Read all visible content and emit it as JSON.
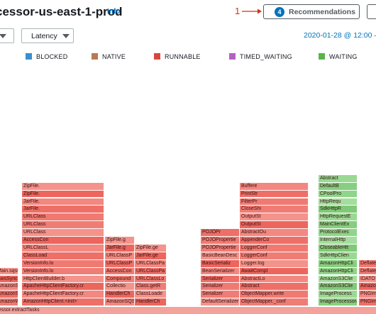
{
  "header": {
    "title": "cessor-us-east-1-prod",
    "info_label": "Info",
    "step_number": "1",
    "recommendations_count": "4",
    "recommendations_label": "Recommendations"
  },
  "toolbar": {
    "metric_value": "Latency",
    "time_range": "2020-01-28 @ 12:00 –"
  },
  "legend": [
    {
      "label": "BLOCKED",
      "color": "#3a8fcf"
    },
    {
      "label": "NATIVE",
      "color": "#b87a52"
    },
    {
      "label": "RUNNABLE",
      "color": "#d9473c"
    },
    {
      "label": "TIMED_WAITING",
      "color": "#b560c4"
    },
    {
      "label": "WAITING",
      "color": "#57b548"
    }
  ],
  "flame_columns": [
    {
      "state": "RUNNABLE",
      "frames": [
        "AmazonWebServiceClient.<init>",
        "AmazonSQSClient.<init>",
        "AmazonSQSClientBuilder.build",
        "AwsSyncClientBuilder.build",
        "Main.sqsClient"
      ]
    },
    {
      "state": "RUNNABLE",
      "frames": [
        "AmazonHttpClient.<init>",
        "ApacheHttpClientFactory.cr",
        "ApacheHttpClientFactory.cr",
        "HttpClientBuilder.b",
        "VersionInfo.lo",
        "VersionInfo.lo",
        "ClassLoad",
        "URLClassL",
        "AccessCon",
        "URLClass",
        "URLClass",
        "URLClass",
        "JarFile.",
        "JarFile.",
        "ZipFile.",
        "ZipFile."
      ]
    },
    {
      "state": "RUNNABLE",
      "frames": [
        "AmazonSQSClient.<init>",
        "HandlerCh",
        "Collectio",
        "Compound",
        "AccessCon",
        "URLClassP",
        "URLClassP",
        "JarFile.g",
        "ZipFile.g"
      ]
    },
    {
      "state": "RUNNABLE",
      "frames": [
        "HandlerCh",
        "ClassLoade",
        "Class.getR",
        "URLClassLo",
        "URLClassPa",
        "URLClassPa",
        "JarFile.ge",
        "ZipFile.ge"
      ]
    },
    {
      "state": "RUNNABLE",
      "frames": [
        "DefaultSerializerP",
        "Serializer",
        "Serializer",
        "Serializer",
        "BeanSerializer",
        "BasicSerializ",
        "BasicBeanDesc",
        "POJOPropertie",
        "POJOPropertie",
        "POJOPr"
      ]
    },
    {
      "state": "RUNNABLE",
      "frames": [
        "ObjectMapper._conf",
        "ObjectMapper.write",
        "Abstract",
        "AbstractLo",
        "AwaitCompl",
        "Logger.log",
        "LoggerConf",
        "LoggerConf",
        "AppenderCo",
        "AbstractOu",
        "OutputSt",
        "OutputSt",
        "CloseShi",
        "FilterPr",
        "PrintStr",
        "Buffere"
      ]
    },
    {
      "state": "WAITING",
      "frames": [
        "ImageProcessor&Brighten",
        "ImageProcess",
        "AmazonS3Clie",
        "AmazonS3Clie",
        "AmazonHttpCli",
        "AmazonHttpCli",
        "SdkHttpClien",
        "CloseableHtt",
        "InternalHttp",
        "ProtocolExec",
        "MainClientEx",
        "HttpRequestE",
        "SdkHttpR",
        "HttpRequ",
        "CPoolPro",
        "DefaultB",
        "Abstract"
      ]
    },
    {
      "state": "RUNNABLE",
      "frames": [
        "PNGIm",
        "PNGIm",
        "AmazonS",
        "IDATO",
        "Deflate",
        "Deflate"
      ]
    }
  ],
  "bottom_frame": "essor.extractTasks"
}
